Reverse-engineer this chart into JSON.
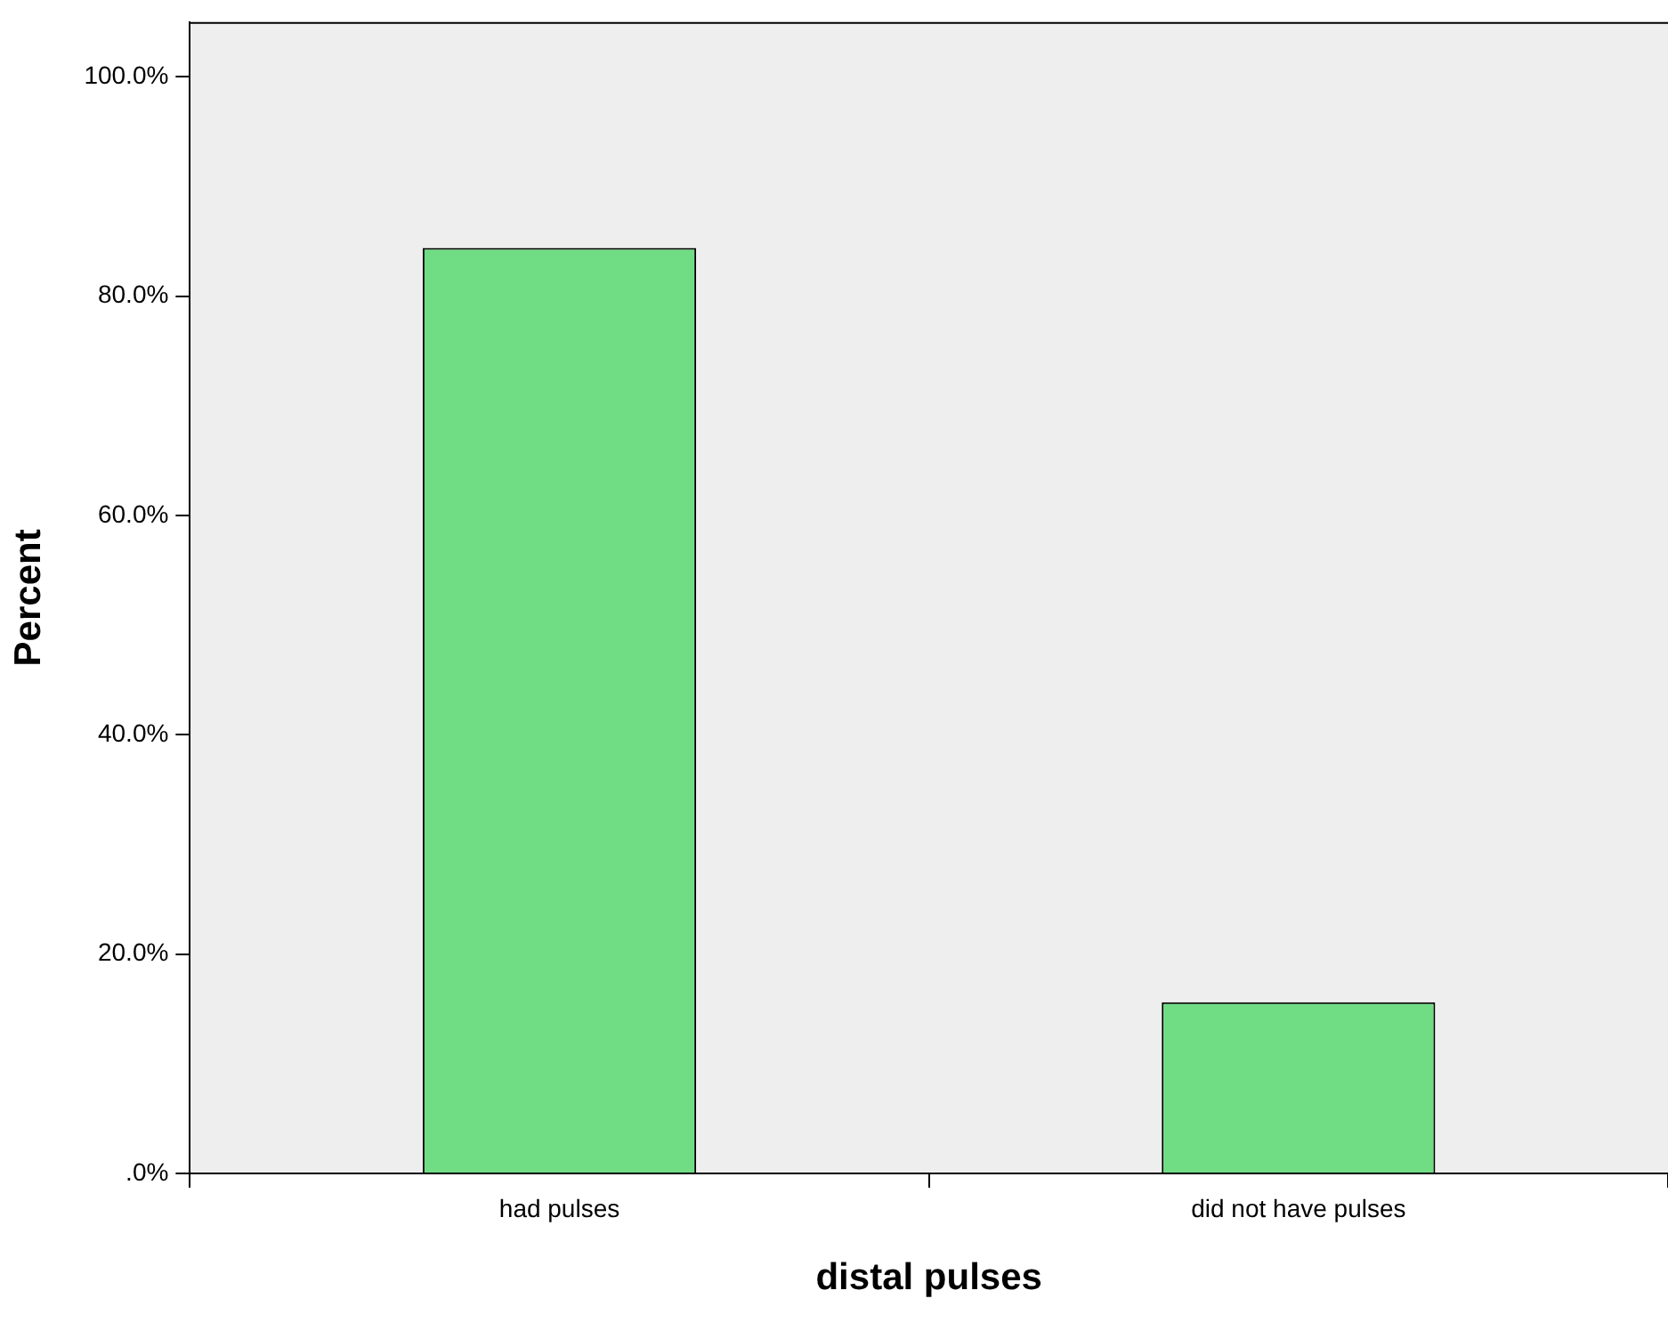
{
  "chart_data": {
    "type": "bar",
    "xlabel": "distal pulses",
    "ylabel": "Percent",
    "categories": [
      "had pulses",
      "did not have pulses"
    ],
    "values": [
      84.4,
      15.6
    ],
    "color": "#70dc84",
    "ylim": [
      0,
      105
    ],
    "yticks": [
      {
        "value": 0,
        "label": ".0%"
      },
      {
        "value": 20,
        "label": "20.0%"
      },
      {
        "value": 40,
        "label": "40.0%"
      },
      {
        "value": 60,
        "label": "60.0%"
      },
      {
        "value": 80,
        "label": "80.0%"
      },
      {
        "value": 100,
        "label": "100.0%"
      }
    ],
    "grid": false,
    "legend": false
  }
}
